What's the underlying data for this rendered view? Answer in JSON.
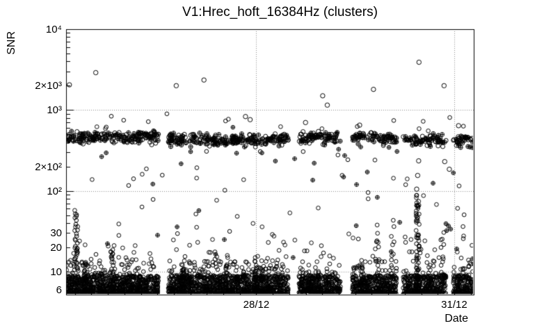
{
  "chart_data": {
    "type": "scatter",
    "title": "V1:Hrec_hoft_16384Hz (clusters)",
    "xlabel": "Date",
    "ylabel": "SNR",
    "yscale": "log",
    "ylim": [
      5.2,
      10000
    ],
    "xlim": [
      0,
      6.18
    ],
    "x_unit": "days (time axis, labeled ticks below)",
    "grid": "dotted",
    "background": "#ffffff",
    "marker_color": "#000000",
    "markers": [
      "open-circle",
      "circled-plus"
    ],
    "x_ticks": [
      {
        "x": 2.884,
        "label": "28/12"
      },
      {
        "x": 5.884,
        "label": "31/12"
      }
    ],
    "y_ticks": [
      {
        "v": 10000,
        "label": "10⁴"
      },
      {
        "v": 2000,
        "label": "2×10³"
      },
      {
        "v": 1000,
        "label": "10³"
      },
      {
        "v": 200,
        "label": "2×10²"
      },
      {
        "v": 100,
        "label": "10²"
      },
      {
        "v": 30,
        "label": "30"
      },
      {
        "v": 20,
        "label": "20"
      },
      {
        "v": 10,
        "label": "10"
      },
      {
        "v": 6,
        "label": "6"
      }
    ],
    "gaps": [
      [
        1.4,
        1.55
      ],
      [
        3.37,
        3.53
      ],
      [
        4.16,
        4.34
      ],
      [
        5.01,
        5.11
      ],
      [
        5.76,
        5.87
      ]
    ],
    "clusters": [
      {
        "name": "noise-floor",
        "seed": 11,
        "count": 3200,
        "x": [
          0,
          6.18
        ],
        "y": [
          5.2,
          9.0
        ],
        "ybias": 1.5,
        "marker": "circle",
        "avoid_gaps": true
      },
      {
        "name": "noise-floor-upper",
        "seed": 12,
        "count": 300,
        "x": [
          0,
          6.18
        ],
        "y": [
          8.5,
          14
        ],
        "ybias": 1.9,
        "marker": "circle",
        "avoid_gaps": true
      },
      {
        "name": "noise-floor-fuzz",
        "seed": 13,
        "count": 70,
        "x": [
          0,
          6.18
        ],
        "y": [
          13,
          28
        ],
        "ybias": 1.7,
        "marker": "circle",
        "avoid_gaps": true
      },
      {
        "name": "glitch-band-450",
        "seed": 14,
        "count": 700,
        "x": [
          0,
          6.18
        ],
        "normal": {
          "center": 440,
          "spread_log": 0.035
        },
        "marker": "mix",
        "plus_frac": 0.55,
        "avoid_gaps": true,
        "r": 3
      },
      {
        "name": "band-halo",
        "seed": 15,
        "count": 40,
        "x": [
          0,
          6.18
        ],
        "y": [
          290,
          640
        ],
        "ybias": 1,
        "marker": "mix",
        "plus_frac": 0.45,
        "avoid_gaps": true
      },
      {
        "name": "mid-scatter",
        "seed": 16,
        "count": 70,
        "x": [
          0,
          6.18
        ],
        "y": [
          14,
          130
        ],
        "ybias": 1.25,
        "marker": "mix",
        "plus_frac": 0.3,
        "avoid_gaps": false
      },
      {
        "name": "upper-scatter",
        "seed": 17,
        "count": 26,
        "x": [
          0,
          6.18
        ],
        "y": [
          130,
          330
        ],
        "ybias": 1,
        "marker": "mix",
        "plus_frac": 0.5,
        "avoid_gaps": false
      },
      {
        "name": "above-band",
        "seed": 18,
        "count": 12,
        "x": [
          0,
          6.18
        ],
        "y": [
          560,
          950
        ],
        "ybias": 1,
        "marker": "circle",
        "avoid_gaps": false
      }
    ],
    "spikes": [
      {
        "x": 0.155,
        "ymax": 60,
        "count": 50
      },
      {
        "x": 0.3,
        "ymax": 14,
        "count": 18
      },
      {
        "x": 0.7,
        "ymax": 22,
        "count": 25
      },
      {
        "x": 0.95,
        "ymax": 20,
        "count": 12
      },
      {
        "x": 1.1,
        "ymax": 12,
        "count": 15
      },
      {
        "x": 1.77,
        "ymax": 14,
        "count": 40
      },
      {
        "x": 2.1,
        "ymax": 12,
        "count": 18
      },
      {
        "x": 2.45,
        "ymax": 16,
        "count": 20
      },
      {
        "x": 2.88,
        "ymax": 16,
        "count": 30
      },
      {
        "x": 2.97,
        "ymax": 12,
        "count": 16
      },
      {
        "x": 3.7,
        "ymax": 11,
        "count": 14
      },
      {
        "x": 4.47,
        "ymax": 13,
        "count": 22
      },
      {
        "x": 4.72,
        "ymax": 40,
        "count": 18
      },
      {
        "x": 4.95,
        "ymax": 45,
        "count": 16
      },
      {
        "x": 5.33,
        "ymax": 90,
        "count": 75
      },
      {
        "x": 5.5,
        "ymax": 12,
        "count": 14
      },
      {
        "x": 5.7,
        "ymax": 30,
        "count": 8
      },
      {
        "x": 6.04,
        "ymax": 55,
        "count": 12
      },
      {
        "x": 6.12,
        "ymax": 14,
        "count": 12
      }
    ],
    "outliers": [
      [
        0.05,
        2050
      ],
      [
        0.45,
        2900
      ],
      [
        1.67,
        2000
      ],
      [
        2.09,
        2350
      ],
      [
        2.72,
        830
      ],
      [
        2.79,
        760
      ],
      [
        3.63,
        700
      ],
      [
        3.89,
        1500
      ],
      [
        3.96,
        1150
      ],
      [
        4.45,
        650
      ],
      [
        4.66,
        1800
      ],
      [
        5.315,
        105
      ],
      [
        5.33,
        155
      ],
      [
        5.345,
        235
      ],
      [
        5.35,
        3900
      ],
      [
        5.73,
        2000
      ],
      [
        5.74,
        230
      ],
      [
        5.81,
        185
      ],
      [
        5.95,
        640
      ]
    ]
  }
}
